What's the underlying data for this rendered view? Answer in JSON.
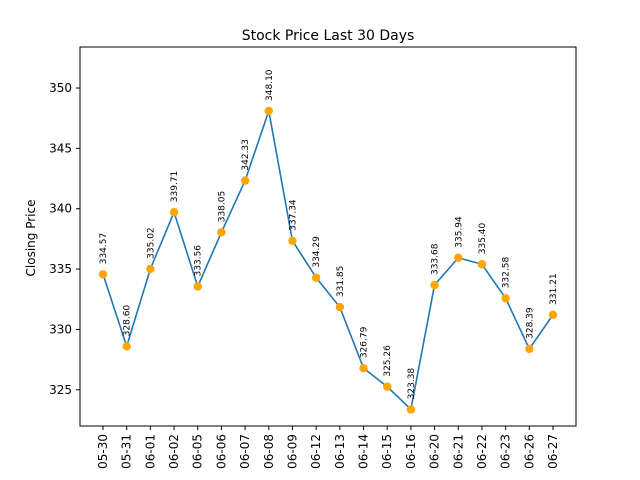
{
  "chart_data": {
    "type": "line",
    "title": "Stock Price Last 30 Days",
    "xlabel": "",
    "ylabel": "Closing Price",
    "categories": [
      "05-30",
      "05-31",
      "06-01",
      "06-02",
      "06-05",
      "06-06",
      "06-07",
      "06-08",
      "06-09",
      "06-12",
      "06-13",
      "06-14",
      "06-15",
      "06-16",
      "06-20",
      "06-21",
      "06-22",
      "06-23",
      "06-26",
      "06-27"
    ],
    "values": [
      334.57,
      328.6,
      335.02,
      339.71,
      333.56,
      338.05,
      342.33,
      348.1,
      337.34,
      334.29,
      331.85,
      326.79,
      325.26,
      323.38,
      333.68,
      335.94,
      335.4,
      332.58,
      328.39,
      331.21
    ],
    "value_labels": [
      "334.57",
      "328.60",
      "335.02",
      "339.71",
      "333.56",
      "338.05",
      "342.33",
      "348.10",
      "337.34",
      "334.29",
      "331.85",
      "326.79",
      "325.26",
      "323.38",
      "333.68",
      "335.94",
      "335.40",
      "332.58",
      "328.39",
      "331.21"
    ],
    "ylim": [
      322.15,
      533.0
    ],
    "yticks": [
      325,
      330,
      335,
      340,
      345,
      350
    ],
    "ytick_labels": [
      "325",
      "330",
      "335",
      "340",
      "345",
      "350"
    ],
    "grid": false,
    "colors": {
      "line": "#1f77b4",
      "marker": "#ffa500"
    }
  }
}
